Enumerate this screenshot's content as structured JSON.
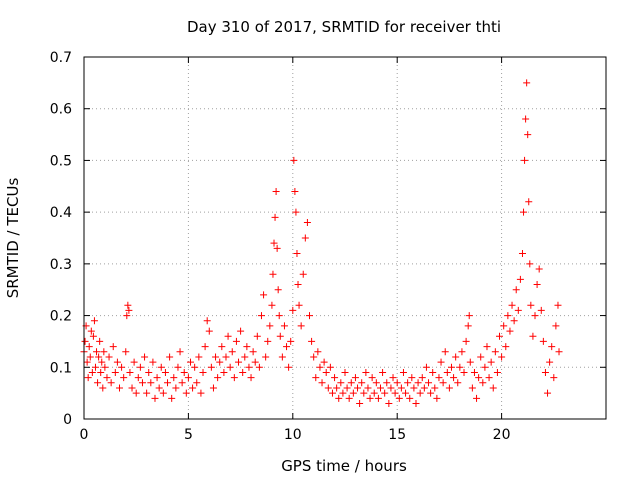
{
  "chart_data": {
    "type": "scatter",
    "title": "Day 310 of 2017, SRMTID for receiver thti",
    "xlabel": "GPS time / hours",
    "ylabel": "SRMTID / TECUs",
    "xlim": [
      0,
      25
    ],
    "ylim": [
      0,
      0.7
    ],
    "xticks": [
      0,
      5,
      10,
      15,
      20
    ],
    "yticks": [
      0,
      0.1,
      0.2,
      0.3,
      0.4,
      0.5,
      0.6,
      0.7
    ],
    "xtick_labels": [
      "0",
      "5",
      "10",
      "15",
      "20"
    ],
    "ytick_labels": [
      "0",
      "0.1",
      "0.2",
      "0.3",
      "0.4",
      "0.5",
      "0.6",
      "0.7"
    ],
    "grid": true,
    "marker": "+",
    "color": "#ff0000",
    "series": [
      {
        "name": "SRMTID",
        "points": [
          [
            0.0,
            0.13
          ],
          [
            0.05,
            0.15
          ],
          [
            0.1,
            0.18
          ],
          [
            0.15,
            0.11
          ],
          [
            0.2,
            0.08
          ],
          [
            0.25,
            0.14
          ],
          [
            0.3,
            0.12
          ],
          [
            0.35,
            0.17
          ],
          [
            0.4,
            0.09
          ],
          [
            0.45,
            0.16
          ],
          [
            0.5,
            0.19
          ],
          [
            0.55,
            0.1
          ],
          [
            0.6,
            0.13
          ],
          [
            0.65,
            0.07
          ],
          [
            0.7,
            0.12
          ],
          [
            0.75,
            0.15
          ],
          [
            0.8,
            0.09
          ],
          [
            0.85,
            0.11
          ],
          [
            0.9,
            0.06
          ],
          [
            0.95,
            0.13
          ],
          [
            1.0,
            0.1
          ],
          [
            1.1,
            0.08
          ],
          [
            1.2,
            0.12
          ],
          [
            1.3,
            0.07
          ],
          [
            1.4,
            0.14
          ],
          [
            1.5,
            0.09
          ],
          [
            1.6,
            0.11
          ],
          [
            1.7,
            0.06
          ],
          [
            1.8,
            0.1
          ],
          [
            1.9,
            0.08
          ],
          [
            2.0,
            0.13
          ],
          [
            2.05,
            0.2
          ],
          [
            2.1,
            0.22
          ],
          [
            2.15,
            0.21
          ],
          [
            2.2,
            0.09
          ],
          [
            2.3,
            0.06
          ],
          [
            2.4,
            0.11
          ],
          [
            2.5,
            0.05
          ],
          [
            2.6,
            0.08
          ],
          [
            2.7,
            0.1
          ],
          [
            2.8,
            0.07
          ],
          [
            2.9,
            0.12
          ],
          [
            3.0,
            0.05
          ],
          [
            3.1,
            0.09
          ],
          [
            3.2,
            0.07
          ],
          [
            3.3,
            0.11
          ],
          [
            3.4,
            0.04
          ],
          [
            3.5,
            0.08
          ],
          [
            3.6,
            0.06
          ],
          [
            3.7,
            0.1
          ],
          [
            3.8,
            0.05
          ],
          [
            3.9,
            0.09
          ],
          [
            4.0,
            0.07
          ],
          [
            4.1,
            0.12
          ],
          [
            4.2,
            0.04
          ],
          [
            4.3,
            0.08
          ],
          [
            4.4,
            0.06
          ],
          [
            4.5,
            0.1
          ],
          [
            4.6,
            0.13
          ],
          [
            4.7,
            0.07
          ],
          [
            4.8,
            0.09
          ],
          [
            4.9,
            0.05
          ],
          [
            5.0,
            0.08
          ],
          [
            5.1,
            0.11
          ],
          [
            5.2,
            0.06
          ],
          [
            5.3,
            0.1
          ],
          [
            5.4,
            0.07
          ],
          [
            5.5,
            0.12
          ],
          [
            5.6,
            0.05
          ],
          [
            5.7,
            0.09
          ],
          [
            5.8,
            0.14
          ],
          [
            5.9,
            0.19
          ],
          [
            6.0,
            0.17
          ],
          [
            6.1,
            0.1
          ],
          [
            6.2,
            0.06
          ],
          [
            6.3,
            0.12
          ],
          [
            6.4,
            0.08
          ],
          [
            6.5,
            0.11
          ],
          [
            6.6,
            0.14
          ],
          [
            6.7,
            0.09
          ],
          [
            6.8,
            0.12
          ],
          [
            6.9,
            0.16
          ],
          [
            7.0,
            0.1
          ],
          [
            7.1,
            0.13
          ],
          [
            7.2,
            0.08
          ],
          [
            7.3,
            0.15
          ],
          [
            7.4,
            0.11
          ],
          [
            7.5,
            0.17
          ],
          [
            7.6,
            0.09
          ],
          [
            7.7,
            0.12
          ],
          [
            7.8,
            0.14
          ],
          [
            7.9,
            0.1
          ],
          [
            8.0,
            0.08
          ],
          [
            8.1,
            0.13
          ],
          [
            8.2,
            0.11
          ],
          [
            8.3,
            0.16
          ],
          [
            8.4,
            0.1
          ],
          [
            8.5,
            0.2
          ],
          [
            8.6,
            0.24
          ],
          [
            8.7,
            0.12
          ],
          [
            8.8,
            0.15
          ],
          [
            8.9,
            0.18
          ],
          [
            9.0,
            0.22
          ],
          [
            9.05,
            0.28
          ],
          [
            9.1,
            0.34
          ],
          [
            9.15,
            0.39
          ],
          [
            9.2,
            0.44
          ],
          [
            9.25,
            0.33
          ],
          [
            9.3,
            0.25
          ],
          [
            9.35,
            0.2
          ],
          [
            9.4,
            0.16
          ],
          [
            9.5,
            0.12
          ],
          [
            9.6,
            0.18
          ],
          [
            9.7,
            0.14
          ],
          [
            9.8,
            0.1
          ],
          [
            9.9,
            0.15
          ],
          [
            10.0,
            0.21
          ],
          [
            10.05,
            0.5
          ],
          [
            10.1,
            0.44
          ],
          [
            10.15,
            0.4
          ],
          [
            10.2,
            0.32
          ],
          [
            10.25,
            0.26
          ],
          [
            10.3,
            0.22
          ],
          [
            10.4,
            0.18
          ],
          [
            10.5,
            0.28
          ],
          [
            10.6,
            0.35
          ],
          [
            10.7,
            0.38
          ],
          [
            10.8,
            0.2
          ],
          [
            10.9,
            0.15
          ],
          [
            11.0,
            0.12
          ],
          [
            11.1,
            0.08
          ],
          [
            11.2,
            0.13
          ],
          [
            11.3,
            0.1
          ],
          [
            11.4,
            0.07
          ],
          [
            11.5,
            0.11
          ],
          [
            11.6,
            0.09
          ],
          [
            11.7,
            0.06
          ],
          [
            11.8,
            0.1
          ],
          [
            11.9,
            0.05
          ],
          [
            12.0,
            0.08
          ],
          [
            12.1,
            0.06
          ],
          [
            12.2,
            0.04
          ],
          [
            12.3,
            0.07
          ],
          [
            12.4,
            0.05
          ],
          [
            12.5,
            0.09
          ],
          [
            12.6,
            0.06
          ],
          [
            12.7,
            0.04
          ],
          [
            12.8,
            0.07
          ],
          [
            12.9,
            0.05
          ],
          [
            13.0,
            0.08
          ],
          [
            13.1,
            0.06
          ],
          [
            13.2,
            0.03
          ],
          [
            13.3,
            0.07
          ],
          [
            13.4,
            0.05
          ],
          [
            13.5,
            0.09
          ],
          [
            13.6,
            0.06
          ],
          [
            13.7,
            0.04
          ],
          [
            13.8,
            0.08
          ],
          [
            13.9,
            0.05
          ],
          [
            14.0,
            0.07
          ],
          [
            14.1,
            0.04
          ],
          [
            14.2,
            0.06
          ],
          [
            14.3,
            0.09
          ],
          [
            14.4,
            0.05
          ],
          [
            14.5,
            0.07
          ],
          [
            14.6,
            0.03
          ],
          [
            14.7,
            0.06
          ],
          [
            14.8,
            0.08
          ],
          [
            14.9,
            0.05
          ],
          [
            15.0,
            0.07
          ],
          [
            15.1,
            0.04
          ],
          [
            15.2,
            0.06
          ],
          [
            15.3,
            0.09
          ],
          [
            15.4,
            0.05
          ],
          [
            15.5,
            0.07
          ],
          [
            15.6,
            0.04
          ],
          [
            15.7,
            0.08
          ],
          [
            15.8,
            0.06
          ],
          [
            15.9,
            0.03
          ],
          [
            16.0,
            0.07
          ],
          [
            16.1,
            0.05
          ],
          [
            16.2,
            0.08
          ],
          [
            16.3,
            0.06
          ],
          [
            16.4,
            0.1
          ],
          [
            16.5,
            0.07
          ],
          [
            16.6,
            0.05
          ],
          [
            16.7,
            0.09
          ],
          [
            16.8,
            0.06
          ],
          [
            16.9,
            0.04
          ],
          [
            17.0,
            0.08
          ],
          [
            17.1,
            0.11
          ],
          [
            17.2,
            0.07
          ],
          [
            17.3,
            0.13
          ],
          [
            17.4,
            0.09
          ],
          [
            17.5,
            0.06
          ],
          [
            17.6,
            0.1
          ],
          [
            17.7,
            0.08
          ],
          [
            17.8,
            0.12
          ],
          [
            17.9,
            0.07
          ],
          [
            18.0,
            0.1
          ],
          [
            18.1,
            0.13
          ],
          [
            18.2,
            0.09
          ],
          [
            18.3,
            0.15
          ],
          [
            18.4,
            0.18
          ],
          [
            18.45,
            0.2
          ],
          [
            18.5,
            0.11
          ],
          [
            18.6,
            0.06
          ],
          [
            18.7,
            0.09
          ],
          [
            18.8,
            0.04
          ],
          [
            18.9,
            0.08
          ],
          [
            19.0,
            0.12
          ],
          [
            19.1,
            0.07
          ],
          [
            19.2,
            0.1
          ],
          [
            19.3,
            0.14
          ],
          [
            19.4,
            0.08
          ],
          [
            19.5,
            0.11
          ],
          [
            19.6,
            0.06
          ],
          [
            19.7,
            0.13
          ],
          [
            19.8,
            0.09
          ],
          [
            19.9,
            0.16
          ],
          [
            20.0,
            0.12
          ],
          [
            20.1,
            0.18
          ],
          [
            20.2,
            0.14
          ],
          [
            20.3,
            0.2
          ],
          [
            20.4,
            0.17
          ],
          [
            20.5,
            0.22
          ],
          [
            20.6,
            0.19
          ],
          [
            20.7,
            0.25
          ],
          [
            20.8,
            0.21
          ],
          [
            20.9,
            0.27
          ],
          [
            21.0,
            0.32
          ],
          [
            21.05,
            0.4
          ],
          [
            21.1,
            0.5
          ],
          [
            21.15,
            0.58
          ],
          [
            21.2,
            0.65
          ],
          [
            21.25,
            0.55
          ],
          [
            21.3,
            0.42
          ],
          [
            21.35,
            0.3
          ],
          [
            21.4,
            0.22
          ],
          [
            21.5,
            0.16
          ],
          [
            21.6,
            0.2
          ],
          [
            21.7,
            0.26
          ],
          [
            21.8,
            0.29
          ],
          [
            21.9,
            0.21
          ],
          [
            22.0,
            0.15
          ],
          [
            22.1,
            0.09
          ],
          [
            22.2,
            0.05
          ],
          [
            22.3,
            0.11
          ],
          [
            22.4,
            0.14
          ],
          [
            22.5,
            0.08
          ],
          [
            22.6,
            0.18
          ],
          [
            22.7,
            0.22
          ],
          [
            22.75,
            0.13
          ]
        ]
      }
    ]
  }
}
